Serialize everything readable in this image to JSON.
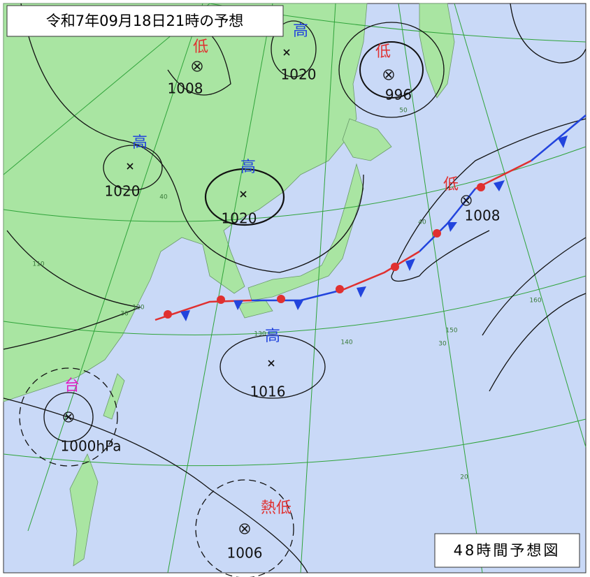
{
  "header": {
    "title": "令和7年09月18日21時の予想"
  },
  "footer": {
    "label": "48時間予想図"
  },
  "pressure_systems": [
    {
      "kind": "低",
      "pressure": "1008"
    },
    {
      "kind": "高",
      "pressure": "1020"
    },
    {
      "kind": "低",
      "pressure": "996"
    },
    {
      "kind": "高",
      "pressure": "1020"
    },
    {
      "kind": "高",
      "pressure": "1020"
    },
    {
      "kind": "低",
      "pressure": "1008"
    },
    {
      "kind": "高",
      "pressure": "1016"
    },
    {
      "kind": "台",
      "pressure": "1000hPa"
    },
    {
      "kind": "熱低",
      "pressure": "1006"
    }
  ],
  "grid_labels": [
    "50",
    "40",
    "40",
    "30",
    "30",
    "20",
    "110",
    "120",
    "130",
    "140",
    "150",
    "160"
  ]
}
